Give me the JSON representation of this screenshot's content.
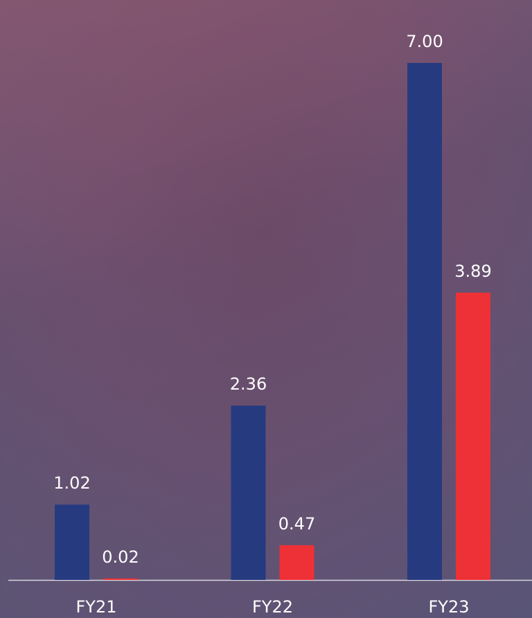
{
  "chart_data": {
    "type": "bar",
    "categories": [
      "FY21",
      "FY22",
      "FY23"
    ],
    "series": [
      {
        "color": "#263a80",
        "values": [
          1.02,
          2.36,
          7.0
        ],
        "value_labels": [
          "1.02",
          "2.36",
          "7.00"
        ]
      },
      {
        "color": "#ee3136",
        "values": [
          0.02,
          0.47,
          3.89
        ],
        "value_labels": [
          "0.02",
          "0.47",
          "3.89"
        ]
      }
    ]
  }
}
